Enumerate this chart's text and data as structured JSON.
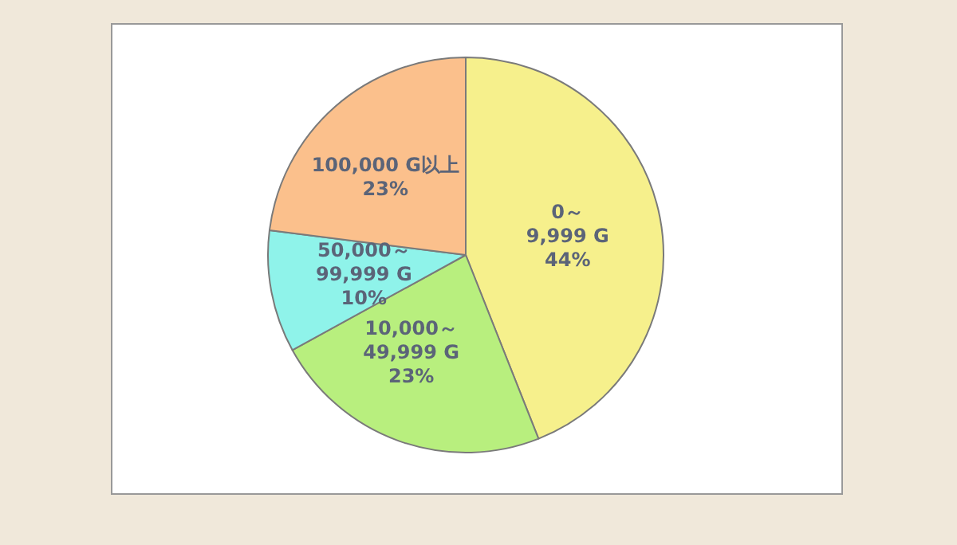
{
  "chart_data": {
    "type": "pie",
    "categories": [
      "0～\n9,999 G",
      "10,000～\n49,999 G",
      "50,000～\n99,999 G",
      "100,000 G以上"
    ],
    "values": [
      44,
      23,
      10,
      23
    ],
    "value_labels": [
      "44%",
      "23%",
      "10%",
      "23%"
    ],
    "colors": [
      "#f6f08c",
      "#b8ef7e",
      "#8ff3ea",
      "#fbc08c"
    ],
    "legend": false
  }
}
